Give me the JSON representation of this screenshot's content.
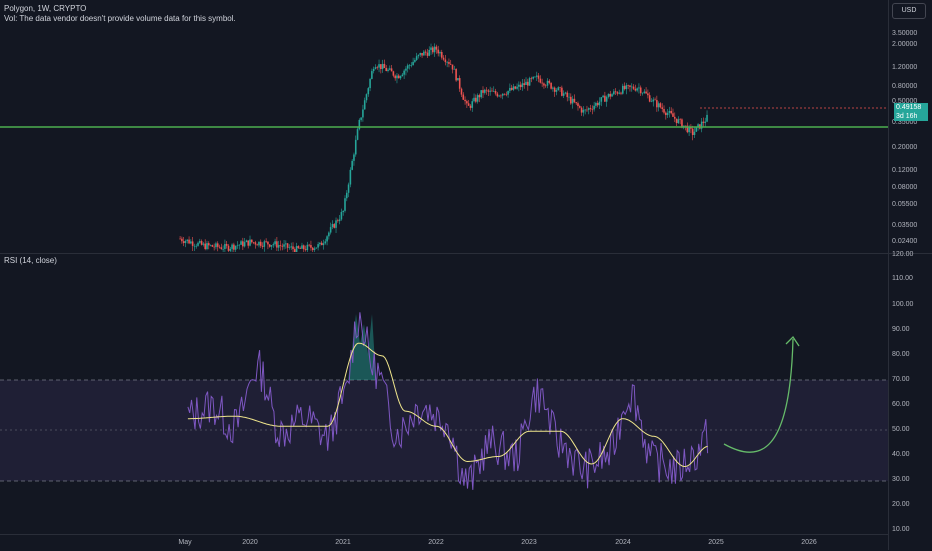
{
  "legend": {
    "symbol_line": "Polygon, 1W, CRYPTO",
    "vol_line": "Vol: The data vendor doesn't provide volume data for this symbol."
  },
  "currency_button": "USD",
  "price_axis": {
    "ticks": [
      "3.50000",
      "2.00000",
      "1.20000",
      "0.80000",
      "0.50000",
      "0.35000",
      "0.20000",
      "0.12000",
      "0.08000",
      "0.05500",
      "0.03500",
      "0.02400"
    ],
    "last_price_badge": "0.49158",
    "countdown_badge": "3d 16h"
  },
  "rsi": {
    "title": "RSI (14, close)",
    "ticks": [
      "120.00",
      "110.00",
      "100.00",
      "90.00",
      "80.00",
      "70.00",
      "60.00",
      "50.00",
      "40.00",
      "30.00",
      "20.00",
      "10.00"
    ]
  },
  "time_axis": [
    "May",
    "2020",
    "2021",
    "2022",
    "2023",
    "2024",
    "2025",
    "2026"
  ],
  "colors": {
    "background": "#131722",
    "up_candle": "#26a69a",
    "down_candle": "#ef5350",
    "support_line": "#4caf50",
    "rsi_line": "#7e57c2",
    "rsi_ma": "#f0e68c",
    "rsi_band": "#7e57c2",
    "arrow": "#66bb6a"
  },
  "chart_data": [
    {
      "type": "candlestick",
      "scale": "log",
      "xlim": [
        "2019-04",
        "2026-06"
      ],
      "ylim": [
        0.02,
        4.0
      ],
      "horizontal_line": 0.33,
      "x": [
        "2019-04",
        "2019-07",
        "2019-10",
        "2020-01",
        "2020-04",
        "2020-07",
        "2020-10",
        "2021-01",
        "2021-03",
        "2021-05",
        "2021-08",
        "2021-11",
        "2022-01",
        "2022-03",
        "2022-05",
        "2022-07",
        "2022-09",
        "2022-11",
        "2023-02",
        "2023-05",
        "2023-08",
        "2023-11",
        "2024-01",
        "2024-03",
        "2024-05",
        "2024-08",
        "2024-10",
        "2024-12"
      ],
      "close": [
        0.026,
        0.022,
        0.021,
        0.024,
        0.023,
        0.02,
        0.022,
        0.05,
        0.4,
        1.8,
        1.3,
        2.2,
        2.5,
        1.7,
        0.6,
        0.9,
        0.85,
        0.95,
        1.25,
        0.9,
        0.55,
        0.8,
        0.95,
        1.0,
        0.7,
        0.45,
        0.33,
        0.49
      ]
    },
    {
      "type": "line",
      "ylim": [
        10,
        120
      ],
      "bands": [
        30,
        50,
        70
      ],
      "series": [
        {
          "x": [
            "2019-05",
            "2019-08",
            "2019-11",
            "2020-02",
            "2020-05",
            "2020-08",
            "2020-11",
            "2021-01",
            "2021-03",
            "2021-05",
            "2021-08",
            "2021-11",
            "2022-02",
            "2022-05",
            "2022-08",
            "2022-11",
            "2023-02",
            "2023-05",
            "2023-08",
            "2023-11",
            "2024-02",
            "2024-05",
            "2024-08",
            "2024-10",
            "2024-12"
          ],
          "values": [
            56,
            60,
            52,
            75,
            50,
            55,
            48,
            62,
            95,
            75,
            50,
            60,
            55,
            30,
            45,
            40,
            65,
            45,
            35,
            40,
            65,
            38,
            35,
            40,
            48
          ]
        },
        {
          "x": [
            "2019-05",
            "2019-11",
            "2020-05",
            "2020-11",
            "2021-03",
            "2021-06",
            "2021-09",
            "2022-01",
            "2022-05",
            "2022-09",
            "2023-01",
            "2023-05",
            "2023-09",
            "2024-01",
            "2024-05",
            "2024-09",
            "2024-12"
          ],
          "values": [
            55,
            56,
            52,
            52,
            85,
            80,
            58,
            52,
            38,
            40,
            50,
            50,
            37,
            55,
            48,
            36,
            44
          ]
        }
      ]
    }
  ]
}
